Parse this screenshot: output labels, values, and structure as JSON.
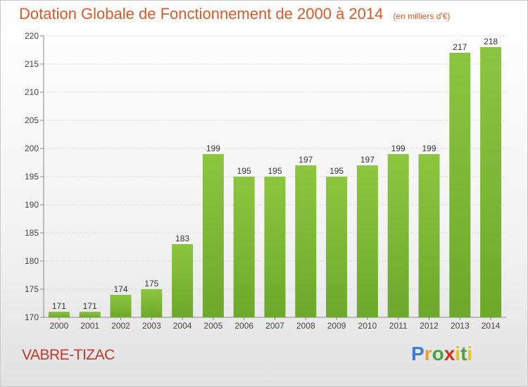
{
  "title": "Dotation Globale de Fonctionnement de 2000 à 2014",
  "unit_note": "(en milliers d'€)",
  "commune": "VABRE-TIZAC",
  "logo": {
    "text": "Proxiti",
    "letters": [
      "P",
      "r",
      "o",
      "x",
      "i",
      "t",
      "i"
    ]
  },
  "colors": {
    "bar": "#8cc63f",
    "bar_dark": "#6ea82c",
    "title": "#d85a2a",
    "commune": "#c0392b"
  },
  "chart_data": {
    "type": "bar",
    "categories": [
      "2000",
      "2001",
      "2002",
      "2003",
      "2004",
      "2005",
      "2006",
      "2007",
      "2008",
      "2009",
      "2010",
      "2011",
      "2012",
      "2013",
      "2014"
    ],
    "values": [
      171,
      171,
      174,
      175,
      183,
      199,
      195,
      195,
      197,
      195,
      197,
      199,
      199,
      217,
      218
    ],
    "data_labels": [
      "171",
      "171",
      "174",
      "175",
      "183",
      "199",
      "195",
      "195",
      "197",
      "195",
      "197",
      "199",
      "199",
      "217",
      "218"
    ],
    "yticks": [
      170,
      175,
      180,
      185,
      190,
      195,
      200,
      205,
      210,
      215,
      220
    ],
    "ylim": [
      170,
      220
    ],
    "grid": true,
    "legend": "none"
  }
}
